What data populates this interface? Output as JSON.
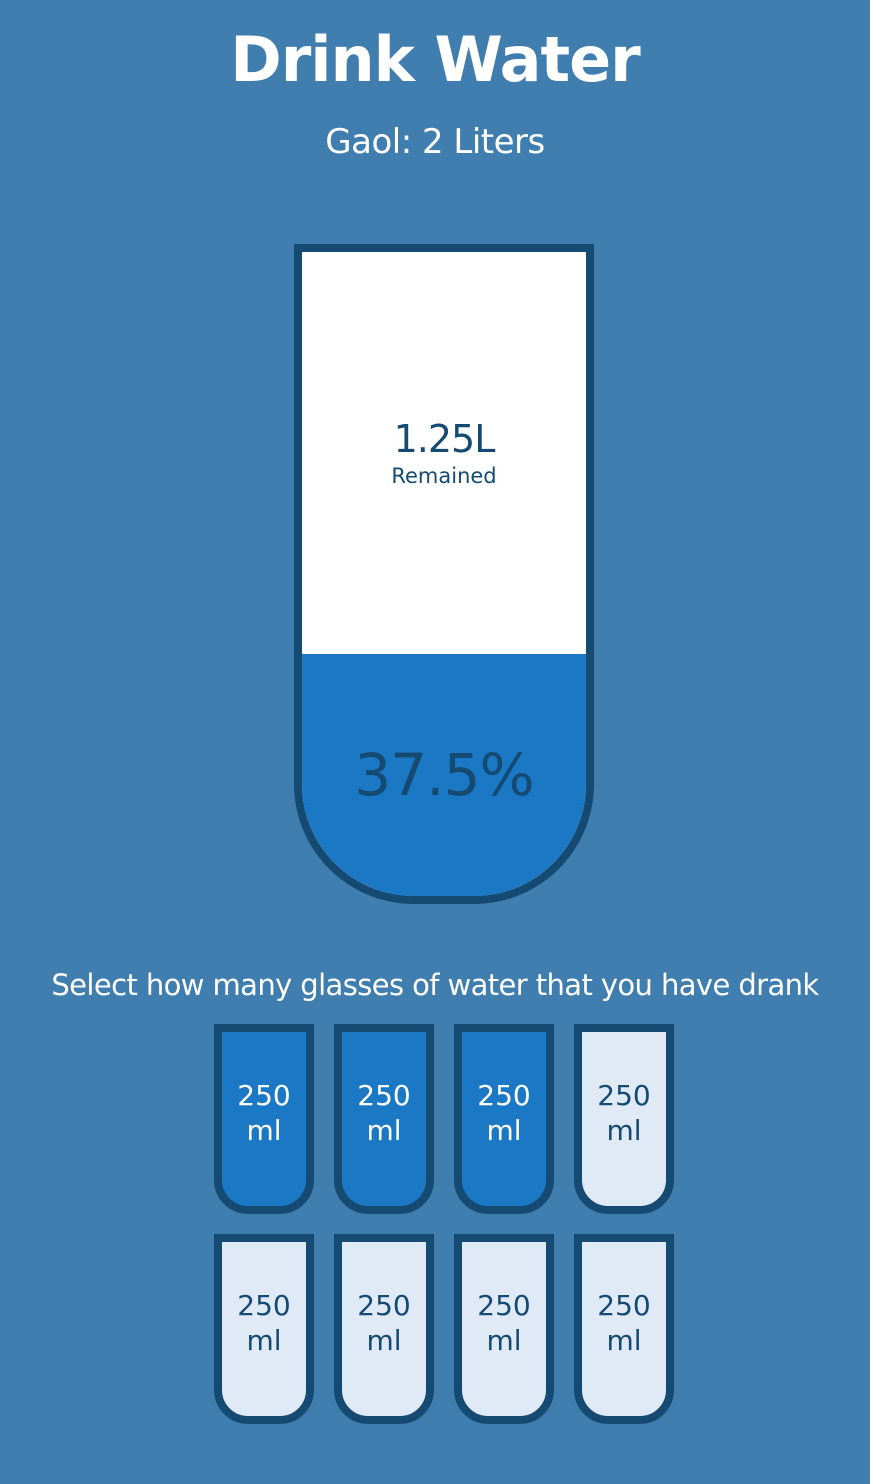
{
  "header": {
    "title": "Drink Water",
    "goal": "Gaol: 2 Liters"
  },
  "big_cup": {
    "remained_amount": "1.25L",
    "remained_label": "Remained",
    "percentage_text": "37.5%",
    "fill_fraction": 0.375
  },
  "instruction": "Select how many glasses of water that you have drank",
  "cups": [
    {
      "label": "250 ml",
      "full": true
    },
    {
      "label": "250 ml",
      "full": true
    },
    {
      "label": "250 ml",
      "full": true
    },
    {
      "label": "250 ml",
      "full": false
    },
    {
      "label": "250 ml",
      "full": false
    },
    {
      "label": "250 ml",
      "full": false
    },
    {
      "label": "250 ml",
      "full": false
    },
    {
      "label": "250 ml",
      "full": false
    }
  ],
  "colors": {
    "background": "#3f7eaf",
    "border": "#154a73",
    "water": "#1b78c5",
    "empty_cup": "#dfeaf6"
  }
}
